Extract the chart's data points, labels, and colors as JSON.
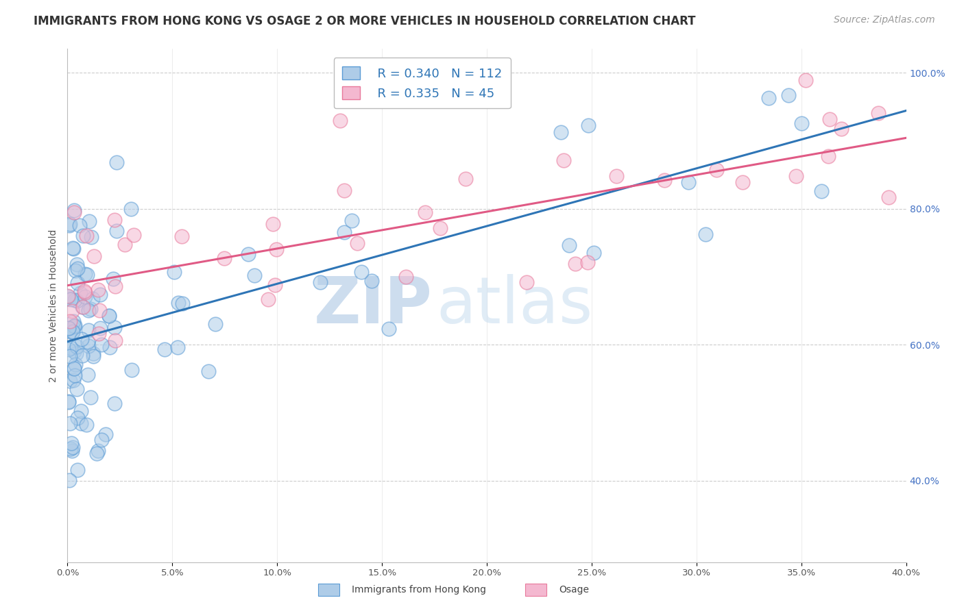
{
  "title": "IMMIGRANTS FROM HONG KONG VS OSAGE 2 OR MORE VEHICLES IN HOUSEHOLD CORRELATION CHART",
  "source": "Source: ZipAtlas.com",
  "ylabel": "2 or more Vehicles in Household",
  "xmin": 0.0,
  "xmax": 0.4,
  "ymin": 0.28,
  "ymax": 1.035,
  "blue_R": 0.34,
  "blue_N": 112,
  "pink_R": 0.335,
  "pink_N": 45,
  "blue_fill": "#aecce8",
  "blue_edge": "#5b9bd5",
  "pink_fill": "#f4b8d0",
  "pink_edge": "#e8799b",
  "blue_line_color": "#2e75b6",
  "pink_line_color": "#e05a85",
  "legend_label_blue": "Immigrants from Hong Kong",
  "legend_label_pink": "Osage",
  "watermark_zip": "ZIP",
  "watermark_atlas": "atlas",
  "title_fontsize": 12,
  "source_fontsize": 10,
  "ytick_color": "#4472c4",
  "xtick_color": "#555555"
}
